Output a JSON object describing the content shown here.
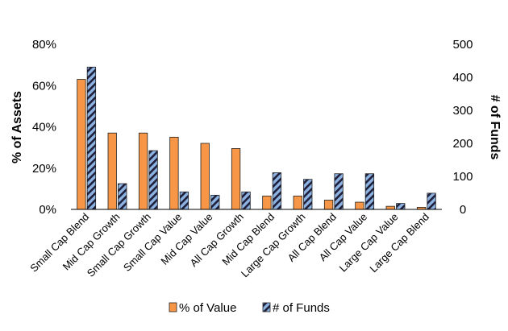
{
  "chart_data": {
    "type": "bar",
    "title": "",
    "xlabel": "",
    "ylabel": "% of Assets",
    "y2label": "# of Funds",
    "categories": [
      "Small Cap Blend",
      "Mid Cap Growth",
      "Small Cap Growth",
      "Small Cap Value",
      "Mid Cap Value",
      "All Cap Growth",
      "Mid Cap Blend",
      "Large Cap Growth",
      "All Cap Blend",
      "All Cap Value",
      "Large Cap Value",
      "Large Cap Blend"
    ],
    "series": [
      {
        "name": "% of Value",
        "axis": "left",
        "color": "#f79646",
        "values": [
          63,
          37,
          37,
          35,
          32,
          29.5,
          6.5,
          6.5,
          4.5,
          3.5,
          1.5,
          1
        ]
      },
      {
        "name": "# of Funds",
        "axis": "right",
        "color": "#8db3e2",
        "values": [
          431,
          78,
          178,
          53,
          43,
          53,
          111,
          91,
          108,
          108,
          18,
          49
        ]
      }
    ],
    "ylim": [
      0,
      80
    ],
    "y_ticks": [
      "0%",
      "20%",
      "40%",
      "60%",
      "80%"
    ],
    "y2lim": [
      0,
      500
    ],
    "y2_ticks": [
      "0",
      "100",
      "200",
      "300",
      "400",
      "500"
    ],
    "grid": false,
    "legend": "bottom"
  }
}
